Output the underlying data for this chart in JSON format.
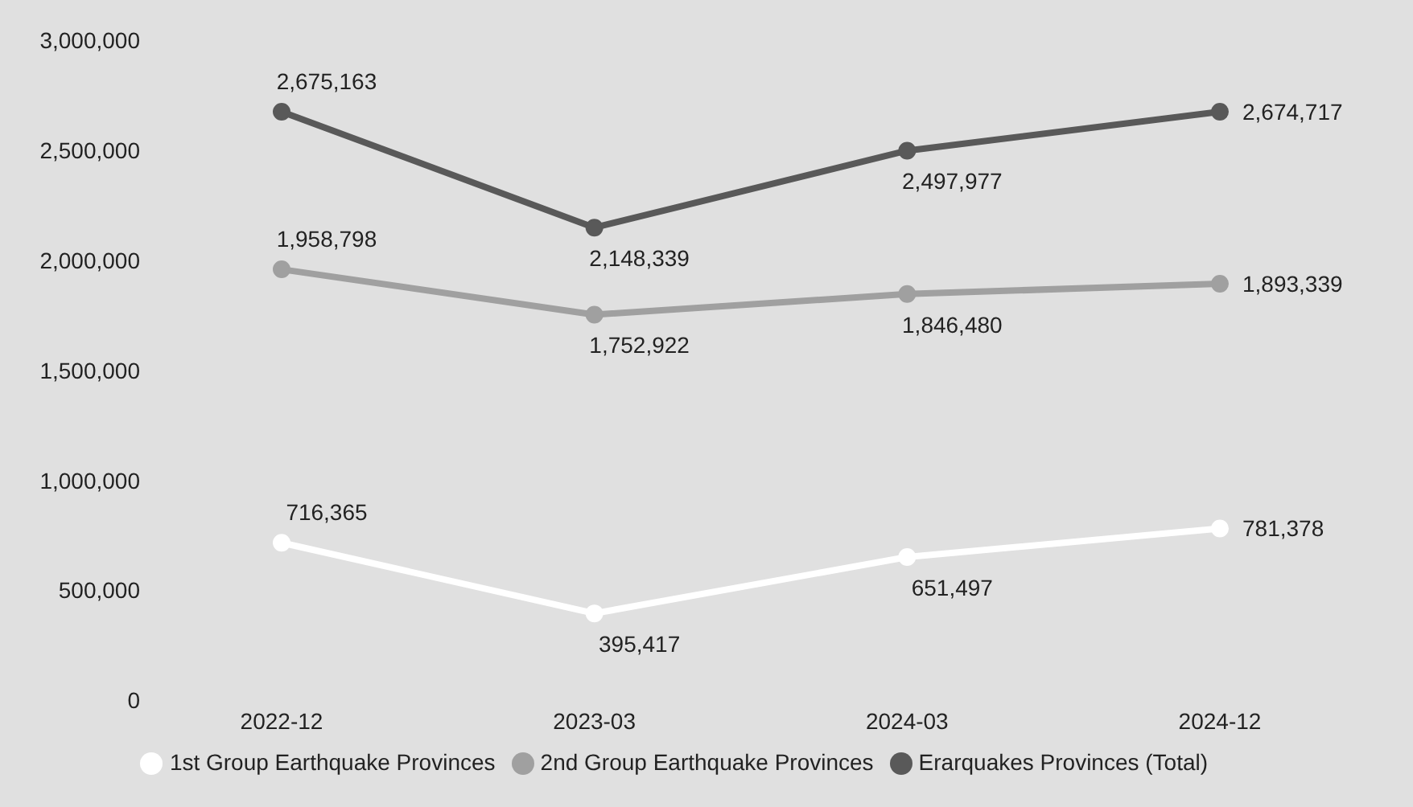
{
  "chart_data": {
    "type": "line",
    "categories": [
      "2022-12",
      "2023-03",
      "2024-03",
      "2024-12"
    ],
    "series": [
      {
        "name": "1st Group Earthquake Provinces",
        "color": "#ffffff",
        "values": [
          716365,
          395417,
          651497,
          781378
        ],
        "value_labels": [
          "716,365",
          "395,417",
          "651,497",
          "781,378"
        ]
      },
      {
        "name": "2nd Group Earthquake Provinces",
        "color": "#a0a0a0",
        "values": [
          1958798,
          1752922,
          1846480,
          1893339
        ],
        "value_labels": [
          "1,958,798",
          "1,752,922",
          "1,846,480",
          "1,893,339"
        ]
      },
      {
        "name": "Erarquakes Provinces (Total)",
        "color": "#595959",
        "values": [
          2675163,
          2148339,
          2497977,
          2674717
        ],
        "value_labels": [
          "2,675,163",
          "2,148,339",
          "2,497,977",
          "2,674,717"
        ]
      }
    ],
    "ylim": [
      0,
      3000000
    ],
    "yticks": [
      0,
      {
        "value": 500000,
        "label": "500,000"
      },
      {
        "value": 1000000,
        "label": "1,000,000"
      },
      {
        "value": 1500000,
        "label": "1,500,000"
      },
      {
        "value": 2000000,
        "label": "2,000,000"
      },
      {
        "value": 2500000,
        "label": "2,500,000"
      },
      {
        "value": 3000000,
        "label": "3,000,000"
      }
    ],
    "grid": false,
    "legend": "bottom",
    "marker": "circle",
    "line_style": "solid"
  }
}
